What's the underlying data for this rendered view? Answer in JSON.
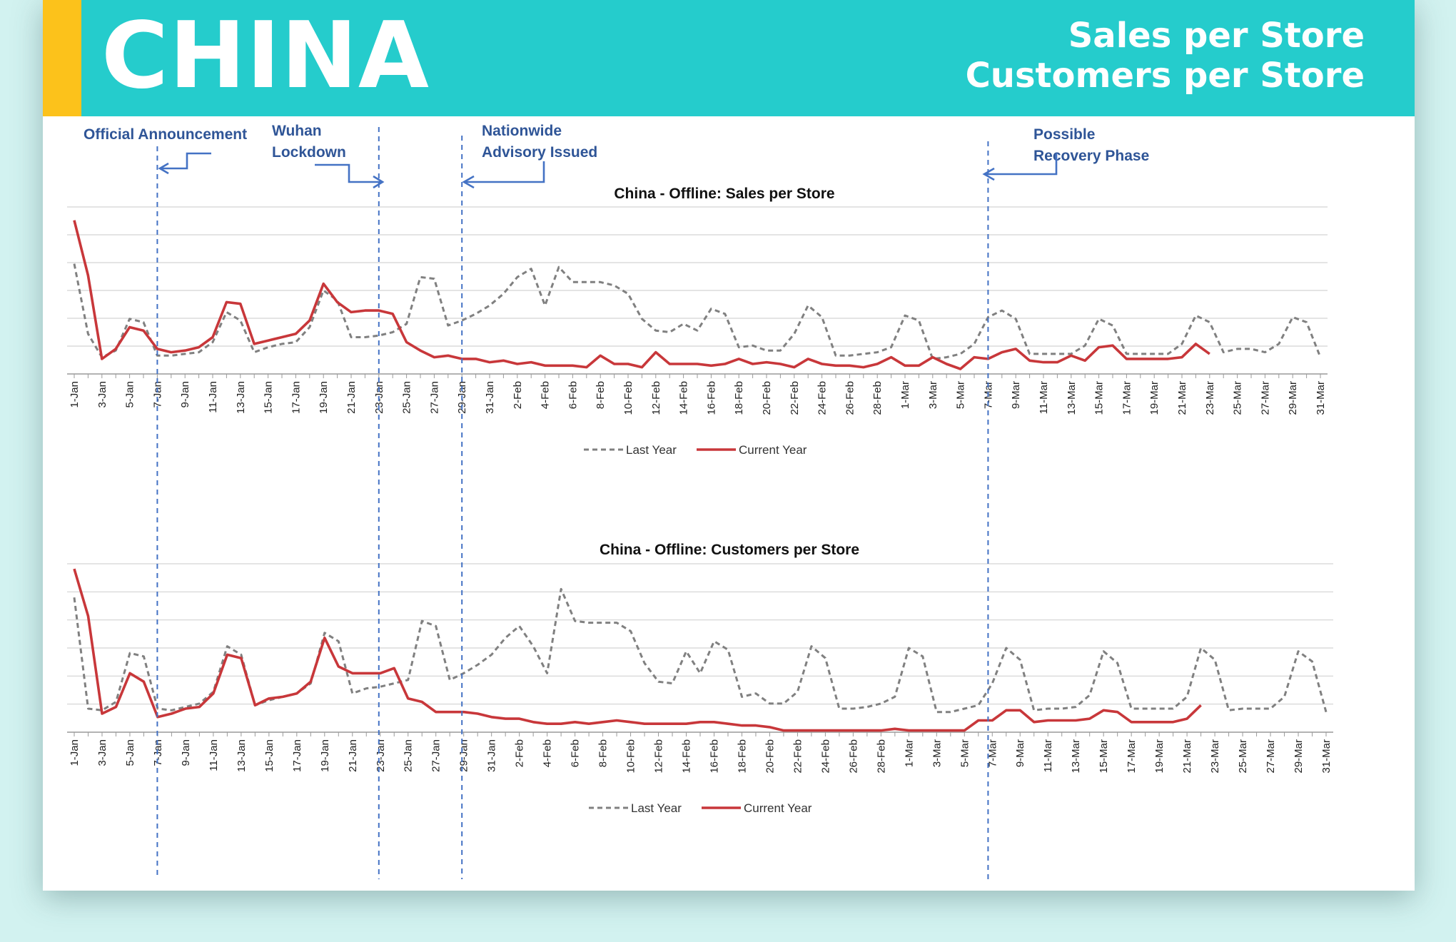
{
  "header": {
    "title": "CHINA",
    "subtitle_lines": [
      "Sales per Store",
      "Customers per Store"
    ],
    "colors": {
      "header_bg": "#25cccc",
      "accent": "#fcc21b",
      "text": "#ffffff"
    }
  },
  "annotations": [
    {
      "label_lines": [
        "Official Announcement"
      ],
      "date": "7-Jan",
      "arrow": "left"
    },
    {
      "label_lines": [
        "Wuhan",
        "Lockdown"
      ],
      "date": "23-Jan",
      "arrow": "right"
    },
    {
      "label_lines": [
        "Nationwide",
        "Advisory Issued"
      ],
      "date": "29-Jan",
      "arrow": "left"
    },
    {
      "label_lines": [
        "Possible",
        "Recovery Phase"
      ],
      "date": "7-Mar",
      "arrow": "left"
    }
  ],
  "chart_data": [
    {
      "type": "line",
      "title": "China - Offline: Sales per Store",
      "xlabel": "",
      "ylabel": "",
      "x": [
        "1-Jan",
        "2-Jan",
        "3-Jan",
        "4-Jan",
        "5-Jan",
        "6-Jan",
        "7-Jan",
        "8-Jan",
        "9-Jan",
        "10-Jan",
        "11-Jan",
        "12-Jan",
        "13-Jan",
        "14-Jan",
        "15-Jan",
        "16-Jan",
        "17-Jan",
        "18-Jan",
        "19-Jan",
        "20-Jan",
        "21-Jan",
        "22-Jan",
        "23-Jan",
        "24-Jan",
        "25-Jan",
        "26-Jan",
        "27-Jan",
        "28-Jan",
        "29-Jan",
        "30-Jan",
        "31-Jan",
        "1-Feb",
        "2-Feb",
        "3-Feb",
        "4-Feb",
        "5-Feb",
        "6-Feb",
        "7-Feb",
        "8-Feb",
        "9-Feb",
        "10-Feb",
        "11-Feb",
        "12-Feb",
        "13-Feb",
        "14-Feb",
        "15-Feb",
        "16-Feb",
        "17-Feb",
        "18-Feb",
        "19-Feb",
        "20-Feb",
        "21-Feb",
        "22-Feb",
        "23-Feb",
        "24-Feb",
        "25-Feb",
        "26-Feb",
        "27-Feb",
        "28-Feb",
        "29-Feb",
        "1-Mar",
        "2-Mar",
        "3-Mar",
        "4-Mar",
        "5-Mar",
        "6-Mar",
        "7-Mar",
        "8-Mar",
        "9-Mar",
        "10-Mar",
        "11-Mar",
        "12-Mar",
        "13-Mar",
        "14-Mar",
        "15-Mar",
        "16-Mar",
        "17-Mar",
        "18-Mar",
        "19-Mar",
        "20-Mar",
        "21-Mar",
        "22-Mar",
        "23-Mar",
        "24-Mar",
        "25-Mar",
        "26-Mar",
        "27-Mar",
        "28-Mar",
        "29-Mar",
        "30-Mar",
        "31-Mar"
      ],
      "tick_labels": [
        "1-Jan",
        "3-Jan",
        "5-Jan",
        "7-Jan",
        "9-Jan",
        "11-Jan",
        "13-Jan",
        "15-Jan",
        "17-Jan",
        "19-Jan",
        "21-Jan",
        "23-Jan",
        "25-Jan",
        "27-Jan",
        "29-Jan",
        "31-Jan",
        "2-Feb",
        "4-Feb",
        "6-Feb",
        "8-Feb",
        "10-Feb",
        "12-Feb",
        "14-Feb",
        "16-Feb",
        "18-Feb",
        "20-Feb",
        "22-Feb",
        "24-Feb",
        "26-Feb",
        "28-Feb",
        "1-Mar",
        "3-Mar",
        "5-Mar",
        "7-Mar",
        "9-Mar",
        "11-Mar",
        "13-Mar",
        "15-Mar",
        "17-Mar",
        "19-Mar",
        "21-Mar",
        "23-Mar",
        "25-Mar",
        "27-Mar",
        "29-Mar",
        "31-Mar"
      ],
      "ylim": [
        0,
        100
      ],
      "grid": true,
      "legend": "bottom",
      "series": [
        {
          "name": "Last Year",
          "style": "dashed",
          "color": "#808080",
          "values": [
            66,
            24,
            10,
            14,
            33,
            31,
            11,
            11,
            12,
            13,
            19,
            37,
            32,
            13,
            16,
            18,
            19,
            28,
            50,
            44,
            22,
            22,
            23,
            25,
            30,
            58,
            57,
            29,
            32,
            36,
            41,
            48,
            58,
            63,
            41,
            64,
            55,
            55,
            55,
            53,
            48,
            33,
            26,
            25,
            30,
            26,
            39,
            36,
            16,
            17,
            14,
            14,
            24,
            41,
            34,
            11,
            11,
            12,
            13,
            16,
            35,
            32,
            9,
            10,
            12,
            18,
            34,
            38,
            33,
            12,
            12,
            12,
            12,
            17,
            33,
            29,
            12,
            12,
            12,
            12,
            18,
            35,
            31,
            13,
            15,
            15,
            13,
            18,
            34,
            31,
            10
          ]
        },
        {
          "name": "Current Year",
          "style": "solid",
          "color": "#c8373a",
          "values": [
            92,
            59,
            9,
            15,
            28,
            26,
            15,
            13,
            14,
            16,
            22,
            43,
            42,
            18,
            20,
            22,
            24,
            32,
            54,
            43,
            37,
            38,
            38,
            36,
            19,
            14,
            10,
            11,
            9,
            9,
            7,
            8,
            6,
            7,
            5,
            5,
            5,
            4,
            11,
            6,
            6,
            4,
            13,
            6,
            6,
            6,
            5,
            6,
            9,
            6,
            7,
            6,
            4,
            9,
            6,
            5,
            5,
            4,
            6,
            10,
            5,
            5,
            10,
            6,
            3,
            10,
            9,
            13,
            15,
            8,
            7,
            7,
            11,
            8,
            16,
            17,
            9,
            9,
            9,
            9,
            10,
            18,
            12,
            null,
            null,
            null,
            null,
            null,
            null,
            null,
            null
          ]
        }
      ]
    },
    {
      "type": "line",
      "title": "China - Offline: Customers per Store",
      "xlabel": "",
      "ylabel": "",
      "x": [
        "1-Jan",
        "2-Jan",
        "3-Jan",
        "4-Jan",
        "5-Jan",
        "6-Jan",
        "7-Jan",
        "8-Jan",
        "9-Jan",
        "10-Jan",
        "11-Jan",
        "12-Jan",
        "13-Jan",
        "14-Jan",
        "15-Jan",
        "16-Jan",
        "17-Jan",
        "18-Jan",
        "19-Jan",
        "20-Jan",
        "21-Jan",
        "22-Jan",
        "23-Jan",
        "24-Jan",
        "25-Jan",
        "26-Jan",
        "27-Jan",
        "28-Jan",
        "29-Jan",
        "30-Jan",
        "31-Jan",
        "1-Feb",
        "2-Feb",
        "3-Feb",
        "4-Feb",
        "5-Feb",
        "6-Feb",
        "7-Feb",
        "8-Feb",
        "9-Feb",
        "10-Feb",
        "11-Feb",
        "12-Feb",
        "13-Feb",
        "14-Feb",
        "15-Feb",
        "16-Feb",
        "17-Feb",
        "18-Feb",
        "19-Feb",
        "20-Feb",
        "21-Feb",
        "22-Feb",
        "23-Feb",
        "24-Feb",
        "25-Feb",
        "26-Feb",
        "27-Feb",
        "28-Feb",
        "29-Feb",
        "1-Mar",
        "2-Mar",
        "3-Mar",
        "4-Mar",
        "5-Mar",
        "6-Mar",
        "7-Mar",
        "8-Mar",
        "9-Mar",
        "10-Mar",
        "11-Mar",
        "12-Mar",
        "13-Mar",
        "14-Mar",
        "15-Mar",
        "16-Mar",
        "17-Mar",
        "18-Mar",
        "19-Mar",
        "20-Mar",
        "21-Mar",
        "22-Mar",
        "23-Mar",
        "24-Mar",
        "25-Mar",
        "26-Mar",
        "27-Mar",
        "28-Mar",
        "29-Mar",
        "30-Mar",
        "31-Mar"
      ],
      "tick_labels": [
        "1-Jan",
        "3-Jan",
        "5-Jan",
        "7-Jan",
        "9-Jan",
        "11-Jan",
        "13-Jan",
        "15-Jan",
        "17-Jan",
        "19-Jan",
        "21-Jan",
        "23-Jan",
        "25-Jan",
        "27-Jan",
        "29-Jan",
        "31-Jan",
        "2-Feb",
        "4-Feb",
        "6-Feb",
        "8-Feb",
        "10-Feb",
        "12-Feb",
        "14-Feb",
        "16-Feb",
        "18-Feb",
        "20-Feb",
        "22-Feb",
        "24-Feb",
        "26-Feb",
        "28-Feb",
        "1-Mar",
        "3-Mar",
        "5-Mar",
        "7-Mar",
        "9-Mar",
        "11-Mar",
        "13-Mar",
        "15-Mar",
        "17-Mar",
        "19-Mar",
        "21-Mar",
        "23-Mar",
        "25-Mar",
        "27-Mar",
        "29-Mar",
        "31-Mar"
      ],
      "ylim": [
        0,
        100
      ],
      "grid": true,
      "legend": "bottom",
      "series": [
        {
          "name": "Last Year",
          "style": "dashed",
          "color": "#808080",
          "values": [
            80,
            14,
            13,
            18,
            47,
            45,
            14,
            13,
            15,
            17,
            24,
            51,
            46,
            16,
            19,
            21,
            23,
            29,
            59,
            54,
            23,
            26,
            27,
            29,
            31,
            66,
            63,
            31,
            35,
            40,
            46,
            56,
            63,
            51,
            35,
            85,
            66,
            65,
            65,
            65,
            60,
            41,
            30,
            29,
            48,
            35,
            54,
            49,
            21,
            23,
            17,
            17,
            24,
            51,
            44,
            14,
            14,
            15,
            17,
            21,
            50,
            45,
            12,
            12,
            14,
            16,
            29,
            50,
            43,
            13,
            14,
            14,
            15,
            22,
            48,
            41,
            14,
            14,
            14,
            14,
            21,
            50,
            43,
            13,
            14,
            14,
            14,
            21,
            48,
            42,
            12
          ]
        },
        {
          "name": "Current Year",
          "style": "solid",
          "color": "#c8373a",
          "values": [
            97,
            69,
            11,
            15,
            35,
            30,
            9,
            11,
            14,
            15,
            23,
            46,
            44,
            16,
            20,
            21,
            23,
            30,
            56,
            39,
            35,
            35,
            35,
            38,
            20,
            18,
            12,
            12,
            12,
            11,
            9,
            8,
            8,
            6,
            5,
            5,
            6,
            5,
            6,
            7,
            6,
            5,
            5,
            5,
            5,
            6,
            6,
            5,
            4,
            4,
            3,
            1,
            1,
            1,
            1,
            1,
            1,
            1,
            1,
            2,
            1,
            1,
            1,
            1,
            1,
            7,
            7,
            13,
            13,
            6,
            7,
            7,
            7,
            8,
            13,
            12,
            6,
            6,
            6,
            6,
            8,
            16,
            null,
            null,
            null,
            null,
            null,
            null,
            null,
            null,
            null
          ]
        }
      ]
    }
  ]
}
